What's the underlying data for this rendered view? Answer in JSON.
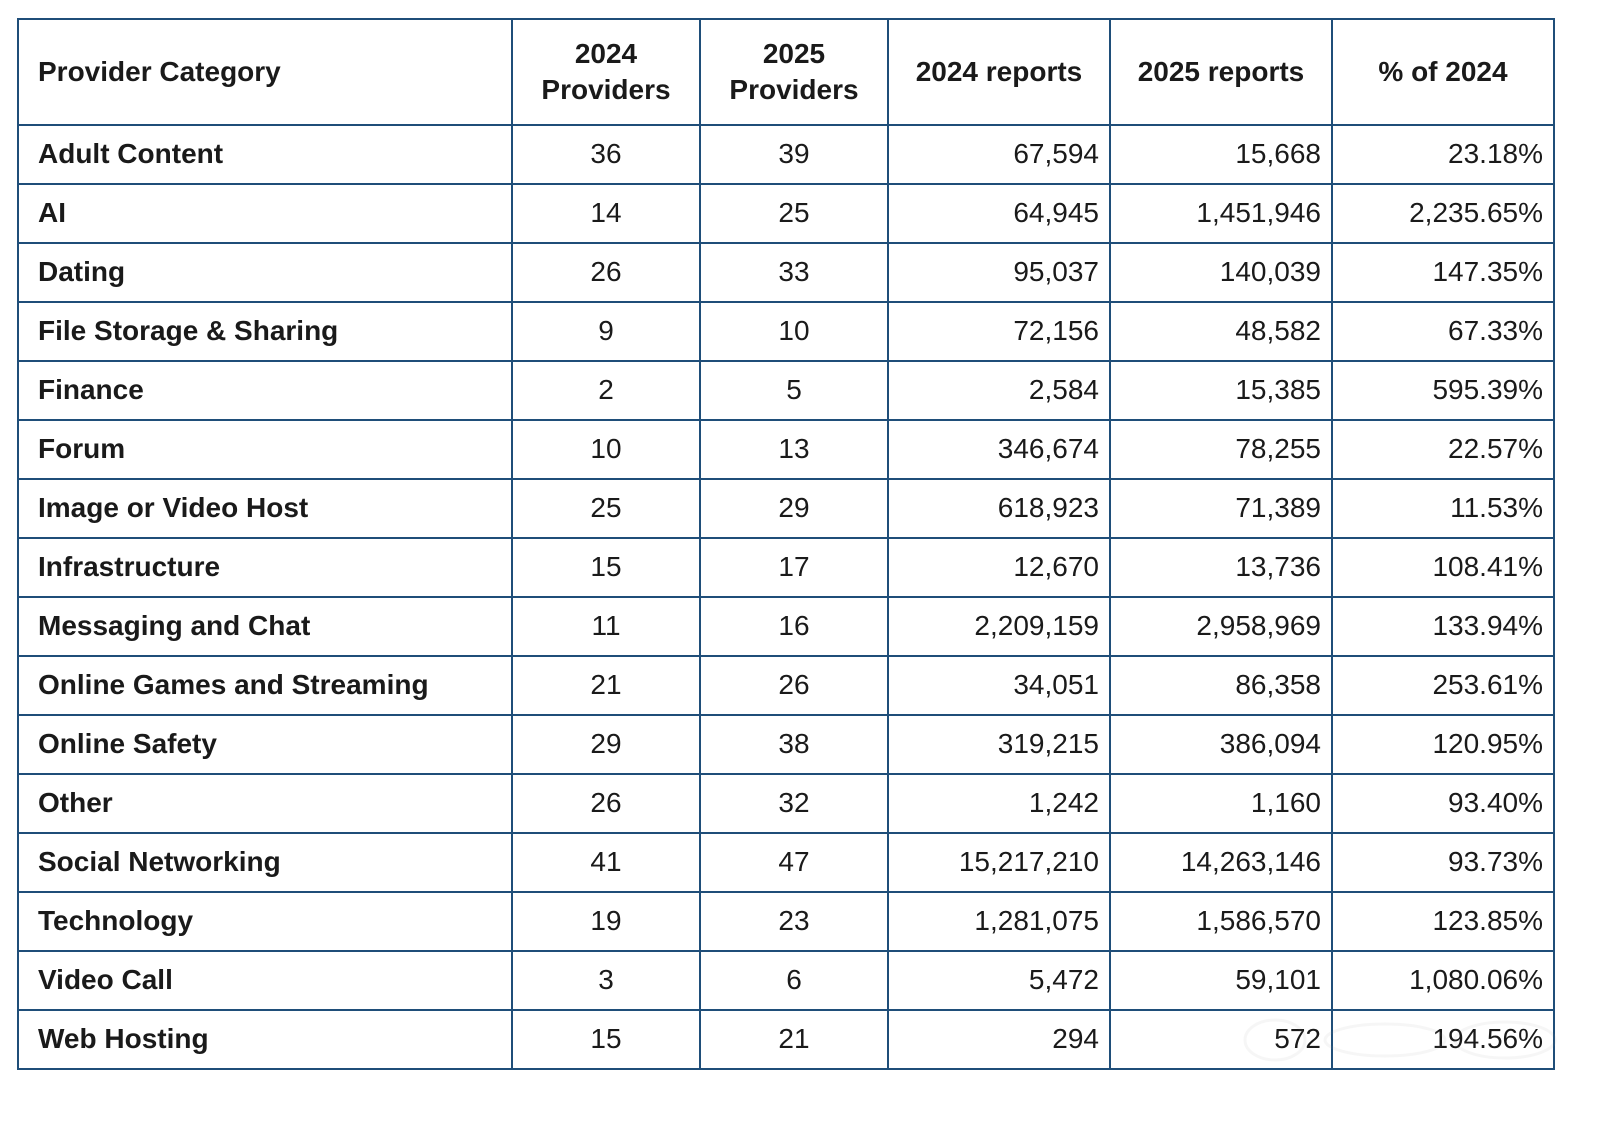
{
  "chart_data": {
    "type": "table",
    "columns": [
      "Provider Category",
      "2024 Providers",
      "2025 Providers",
      "2024 reports",
      "2025 reports",
      "% of 2024"
    ],
    "rows": [
      [
        "Adult Content",
        "36",
        "39",
        "67,594",
        "15,668",
        "23.18%"
      ],
      [
        "AI",
        "14",
        "25",
        "64,945",
        "1,451,946",
        "2,235.65%"
      ],
      [
        "Dating",
        "26",
        "33",
        "95,037",
        "140,039",
        "147.35%"
      ],
      [
        "File Storage & Sharing",
        "9",
        "10",
        "72,156",
        "48,582",
        "67.33%"
      ],
      [
        "Finance",
        "2",
        "5",
        "2,584",
        "15,385",
        "595.39%"
      ],
      [
        "Forum",
        "10",
        "13",
        "346,674",
        "78,255",
        "22.57%"
      ],
      [
        "Image or Video Host",
        "25",
        "29",
        "618,923",
        "71,389",
        "11.53%"
      ],
      [
        "Infrastructure",
        "15",
        "17",
        "12,670",
        "13,736",
        "108.41%"
      ],
      [
        "Messaging and Chat",
        "11",
        "16",
        "2,209,159",
        "2,958,969",
        "133.94%"
      ],
      [
        "Online Games and Streaming",
        "21",
        "26",
        "34,051",
        "86,358",
        "253.61%"
      ],
      [
        "Online Safety",
        "29",
        "38",
        "319,215",
        "386,094",
        "120.95%"
      ],
      [
        "Other",
        "26",
        "32",
        "1,242",
        "1,160",
        "93.40%"
      ],
      [
        "Social Networking",
        "41",
        "47",
        "15,217,210",
        "14,263,146",
        "93.73%"
      ],
      [
        "Technology",
        "19",
        "23",
        "1,281,075",
        "1,586,570",
        "123.85%"
      ],
      [
        "Video Call",
        "3",
        "6",
        "5,472",
        "59,101",
        "1,080.06%"
      ],
      [
        "Web Hosting",
        "15",
        "21",
        "294",
        "572",
        "194.56%"
      ]
    ]
  },
  "colors": {
    "border": "#1f4e79",
    "text": "#1a1a1a",
    "background": "#ffffff"
  }
}
